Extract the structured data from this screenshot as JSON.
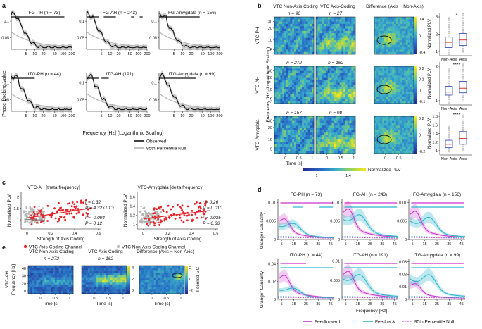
{
  "figure": {
    "panel_labels": {
      "a": "a",
      "b": "b",
      "c": "c",
      "d": "d",
      "e": "e"
    },
    "colors": {
      "observed": "#111111",
      "null": "#b5b5b5",
      "band": "#888888",
      "red": "#e3242b",
      "grey_pts": "#b9b9b9",
      "ff": "#cc33cc",
      "fb": "#29b3c9"
    }
  },
  "chart_data": [
    {
      "id": "a",
      "type": "line",
      "ylabel": "Phase-Locking Value",
      "xlabel": "Frequency [Hz] (Logarithmic Scaling)",
      "x_ticks": [
        "5",
        "10",
        "20",
        "50",
        "100",
        "200"
      ],
      "legend": [
        "Observed",
        "95th Percentile Null"
      ],
      "subplots": [
        {
          "title": "FG-PH (n = 73)",
          "n": 73,
          "y_ticks": [
            "0.05",
            "0.1"
          ],
          "sig": [
            [
              1,
              110
            ]
          ]
        },
        {
          "title": "FG-AH (n = 243)",
          "n": 243,
          "y_ticks": [
            "0.05",
            "0.1"
          ],
          "sig": [
            [
              1,
              4
            ],
            [
              6,
              16
            ],
            [
              55,
              70
            ],
            [
              110,
              140
            ]
          ]
        },
        {
          "title": "FG-Amygdala (n = 156)",
          "n": 156,
          "y_ticks": [
            "0.05",
            "0.1"
          ],
          "sig": [
            [
              1,
              40
            ]
          ]
        },
        {
          "title": "ITG-PH (n = 44)",
          "n": 44,
          "y_ticks": [
            "0.05",
            "0.1"
          ],
          "sig": [
            [
              1,
              10
            ]
          ]
        },
        {
          "title": "ITG-AH (191)",
          "n": 191,
          "y_ticks": [
            "0.05",
            "0.1"
          ],
          "sig": [
            [
              1,
              4
            ],
            [
              5,
              9
            ]
          ]
        },
        {
          "title": "ITG-Amygdala (n = 99)",
          "n": 99,
          "y_ticks": [
            "0.05",
            "0.1"
          ],
          "sig": [
            [
              1,
              30
            ]
          ]
        }
      ]
    },
    {
      "id": "b",
      "type": "heatmap",
      "col_titles": [
        "VTC Non-Axis Coding",
        "VTC Axis-Coding",
        "Difference (Axis − Non-Axis)"
      ],
      "ylabel": "Frequency [Hz] (Logarithmic Scaling)",
      "xlabel": "Time [s]",
      "x_ticks": [
        "0",
        "0.5",
        "1"
      ],
      "y_ticks": [
        "30",
        "20",
        "10",
        "5"
      ],
      "colorbar_title": "Normalized PLV",
      "colorbar_ticks": [
        "1",
        "1.4"
      ],
      "box_ylabel": "Normalized PLV",
      "box_categories": [
        "Non-Axis",
        "Axis"
      ],
      "rows": [
        {
          "label": "VTC-PH",
          "n_non": "n = 90",
          "n_axis": "n = 27",
          "diff_ticks": [
            "0.4",
            "0",
            "-0.4"
          ],
          "box_ticks": [
            "3",
            "2",
            "1"
          ],
          "sig": "*",
          "box": {
            "non": {
              "q1": 0.96,
              "med": 1.18,
              "q3": 1.4,
              "lo": 0.65,
              "hi": 2.05
            },
            "axis": {
              "q1": 1.05,
              "med": 1.28,
              "q3": 1.55,
              "lo": 0.75,
              "hi": 2.25
            }
          }
        },
        {
          "label": "VTC-AH",
          "n_non": "n = 272",
          "n_axis": "n = 162",
          "diff_ticks": [
            "0.2",
            "0.1",
            "0",
            "-0.1"
          ],
          "box_ticks": [
            "2",
            "1"
          ],
          "sig": "****",
          "box": {
            "non": {
              "q1": 1.02,
              "med": 1.1,
              "q3": 1.25,
              "lo": 0.8,
              "hi": 1.6
            },
            "axis": {
              "q1": 1.08,
              "med": 1.2,
              "q3": 1.38,
              "lo": 0.85,
              "hi": 1.75
            }
          }
        },
        {
          "label": "VTC-Amygdala",
          "n_non": "n = 157",
          "n_axis": "n = 98",
          "diff_ticks": [
            "0.2",
            "0",
            "-0.2"
          ],
          "box_ticks": [
            "1.8",
            "1.6",
            "1.4",
            "1.2",
            "1"
          ],
          "sig": "****",
          "box": {
            "non": {
              "q1": 1.0,
              "med": 1.06,
              "q3": 1.13,
              "lo": 0.92,
              "hi": 1.3
            },
            "axis": {
              "q1": 1.06,
              "med": 1.16,
              "q3": 1.28,
              "lo": 0.95,
              "hi": 1.5
            }
          }
        }
      ]
    },
    {
      "id": "c",
      "type": "scatter",
      "xlabel": "Strength of Axis Coding",
      "ylabel": "Normalized PLV",
      "x_ticks": [
        "0",
        "0.2",
        "0.4",
        "0.6"
      ],
      "legend": [
        "VTC Axis-Coding Channel",
        "VTC Non-Axis-Coding Channel"
      ],
      "subplots": [
        {
          "title": "VTC-AH [theta frequency]",
          "xlim": [
            -0.05,
            0.62
          ],
          "ylim": [
            0.6,
            2.2
          ],
          "y_ticks": [
            "2",
            "1.5",
            "1"
          ],
          "axis_stats": [
            "r = 0.32",
            "P = 4.32×10⁻⁵"
          ],
          "non_stats": [
            "r = -0.094",
            "P = 0.12"
          ],
          "axis_fit": [
            [
              0.0,
              1.08
            ],
            [
              0.55,
              1.52
            ]
          ],
          "non_fit": [
            [
              -0.02,
              1.02
            ],
            [
              0.15,
              0.98
            ]
          ]
        },
        {
          "title": "VTC-Amygdala [delta frequency]",
          "xlim": [
            -0.05,
            0.62
          ],
          "ylim": [
            0.9,
            1.7
          ],
          "y_ticks": [
            "1.6",
            "1.4",
            "1.2",
            "1"
          ],
          "axis_stats": [
            "r = 0.26",
            "P = 0.010"
          ],
          "non_stats": [
            "r = 0.035",
            "P = 0.66"
          ],
          "axis_fit": [
            [
              0.0,
              1.12
            ],
            [
              0.55,
              1.3
            ]
          ],
          "non_fit": [
            [
              -0.02,
              1.07
            ],
            [
              0.15,
              1.08
            ]
          ]
        }
      ]
    },
    {
      "id": "d",
      "type": "line",
      "ylabel": "Granger Causality",
      "xlabel": "Frequency [Hz]",
      "x_ticks": [
        "5",
        "15",
        "25",
        "35",
        "45"
      ],
      "legend": [
        "Feedforward",
        "Feedback",
        "95th Percentile Null"
      ],
      "subplots": [
        {
          "title": "FG-PH (n = 73)",
          "ylim": [
            0,
            0.011
          ],
          "y_ticks": [
            "0.01",
            "0.005",
            "0"
          ],
          "ff_peak": 0.0062,
          "fb_peak": 0.0055,
          "ff_sig": [
            [
              4,
              47
            ]
          ],
          "fb_sig": [
            [
              14,
              22
            ],
            [
              36,
              47
            ]
          ]
        },
        {
          "title": "FG-AH (n = 243)",
          "ylim": [
            0,
            0.011
          ],
          "y_ticks": [
            "0.01",
            "0.005",
            "0"
          ],
          "ff_peak": 0.0092,
          "fb_peak": 0.0088,
          "ff_sig": [
            [
              4,
              47
            ]
          ],
          "fb_sig": [
            [
              4,
              47
            ]
          ]
        },
        {
          "title": "FG-Amygdala (n = 156)",
          "ylim": [
            0,
            0.011
          ],
          "y_ticks": [
            "0.01",
            "0.005",
            "0"
          ],
          "ff_peak": 0.0085,
          "fb_peak": 0.0082,
          "ff_sig": [
            [
              4,
              47
            ]
          ],
          "fb_sig": [
            [
              4,
              47
            ]
          ]
        },
        {
          "title": "ITG-PH (n = 44)",
          "ylim": [
            0,
            0.045
          ],
          "y_ticks": [
            "0.04",
            "0.02",
            "0"
          ],
          "ff_peak": 0.03,
          "fb_peak": 0.016,
          "ff_sig": [
            [
              4,
              25
            ]
          ],
          "fb_sig": [
            [
              4,
              47
            ]
          ]
        },
        {
          "title": "ITG-AH (n = 191)",
          "ylim": [
            0,
            0.0105
          ],
          "y_ticks": [
            "0.01",
            "0.005",
            "0"
          ],
          "ff_peak": 0.0082,
          "fb_peak": 0.0086,
          "ff_sig": [
            [
              4,
              47
            ]
          ],
          "fb_sig": [
            [
              4,
              47
            ]
          ]
        },
        {
          "title": "ITG-Amygdala (n = 99)",
          "ylim": [
            0,
            0.032
          ],
          "y_ticks": [
            "0.03",
            "0.02",
            "0.01",
            "0"
          ],
          "ff_peak": 0.014,
          "fb_peak": 0.027,
          "ff_sig": [
            [
              4,
              47
            ]
          ],
          "fb_sig": [
            [
              4,
              47
            ]
          ]
        }
      ]
    },
    {
      "id": "e",
      "type": "heatmap",
      "row_label": "VTC-AH",
      "ylabel": "Frequency [Hz]",
      "xlabel": "Time [s]",
      "col_titles": [
        "VTC Non-Axis Coding",
        "VTC Axis Coding",
        "Difference (Axis − Non-Axis)"
      ],
      "n_labels": [
        "n = 272",
        "n = 162"
      ],
      "y_ticks": [
        "40",
        "30",
        "20",
        "10"
      ],
      "x_ticks": [
        "0",
        "0.5",
        "1"
      ],
      "cb_ticks": [
        "4",
        "2",
        "0"
      ],
      "cb_title": "z-scored GC",
      "diff_ticks": [
        "2",
        "0",
        "-2"
      ]
    }
  ]
}
